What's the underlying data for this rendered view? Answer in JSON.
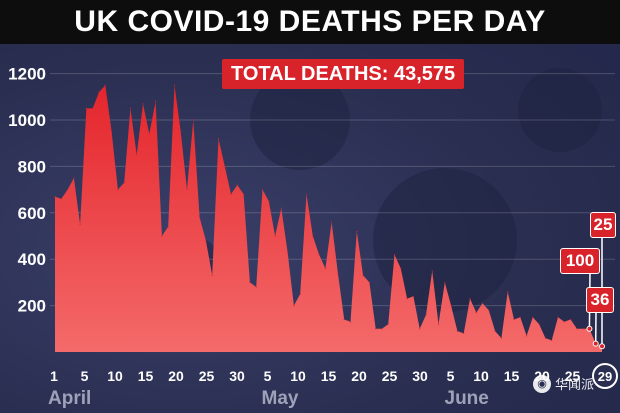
{
  "title": "UK COVID-19 DEATHS PER DAY",
  "total_label": "TOTAL DEATHS: 43,575",
  "callouts": [
    {
      "label": "25",
      "day": 29,
      "value": 25
    },
    {
      "label": "100",
      "day": 27,
      "value": 100
    },
    {
      "label": "36",
      "day": 28,
      "value": 36
    }
  ],
  "last_day_label": "29",
  "watermark": "华闻派",
  "chart_data": {
    "type": "area",
    "title": "UK COVID-19 DEATHS PER DAY",
    "xlabel": "",
    "ylabel": "",
    "ylim": [
      0,
      1250
    ],
    "yticks": [
      200,
      400,
      600,
      800,
      1000,
      1200
    ],
    "xticks": [
      "1",
      "5",
      "10",
      "15",
      "20",
      "25",
      "30",
      "5",
      "10",
      "15",
      "20",
      "25",
      "30",
      "5",
      "10",
      "15",
      "20",
      "25",
      "29"
    ],
    "months": [
      "April",
      "May",
      "June"
    ],
    "color": "#d8232a",
    "series": [
      {
        "values": [
          670,
          660,
          700,
          750,
          550,
          1050,
          1050,
          1120,
          1150,
          950,
          700,
          730,
          1050,
          850,
          1070,
          940,
          1080,
          500,
          540,
          1150,
          950,
          700,
          1000,
          580,
          480,
          330,
          920,
          800,
          680,
          720,
          680,
          300,
          280,
          700,
          650,
          500,
          620,
          430,
          200,
          250,
          680,
          500,
          420,
          360,
          560,
          340,
          140,
          130,
          520,
          330,
          300,
          100,
          100,
          120,
          420,
          360,
          230,
          240,
          100,
          160,
          350,
          120,
          300,
          200,
          90,
          80,
          230,
          170,
          210,
          180,
          90,
          60,
          260,
          140,
          150,
          70,
          150,
          120,
          60,
          50,
          150,
          130,
          140,
          100,
          100,
          100,
          36,
          25
        ]
      }
    ]
  }
}
